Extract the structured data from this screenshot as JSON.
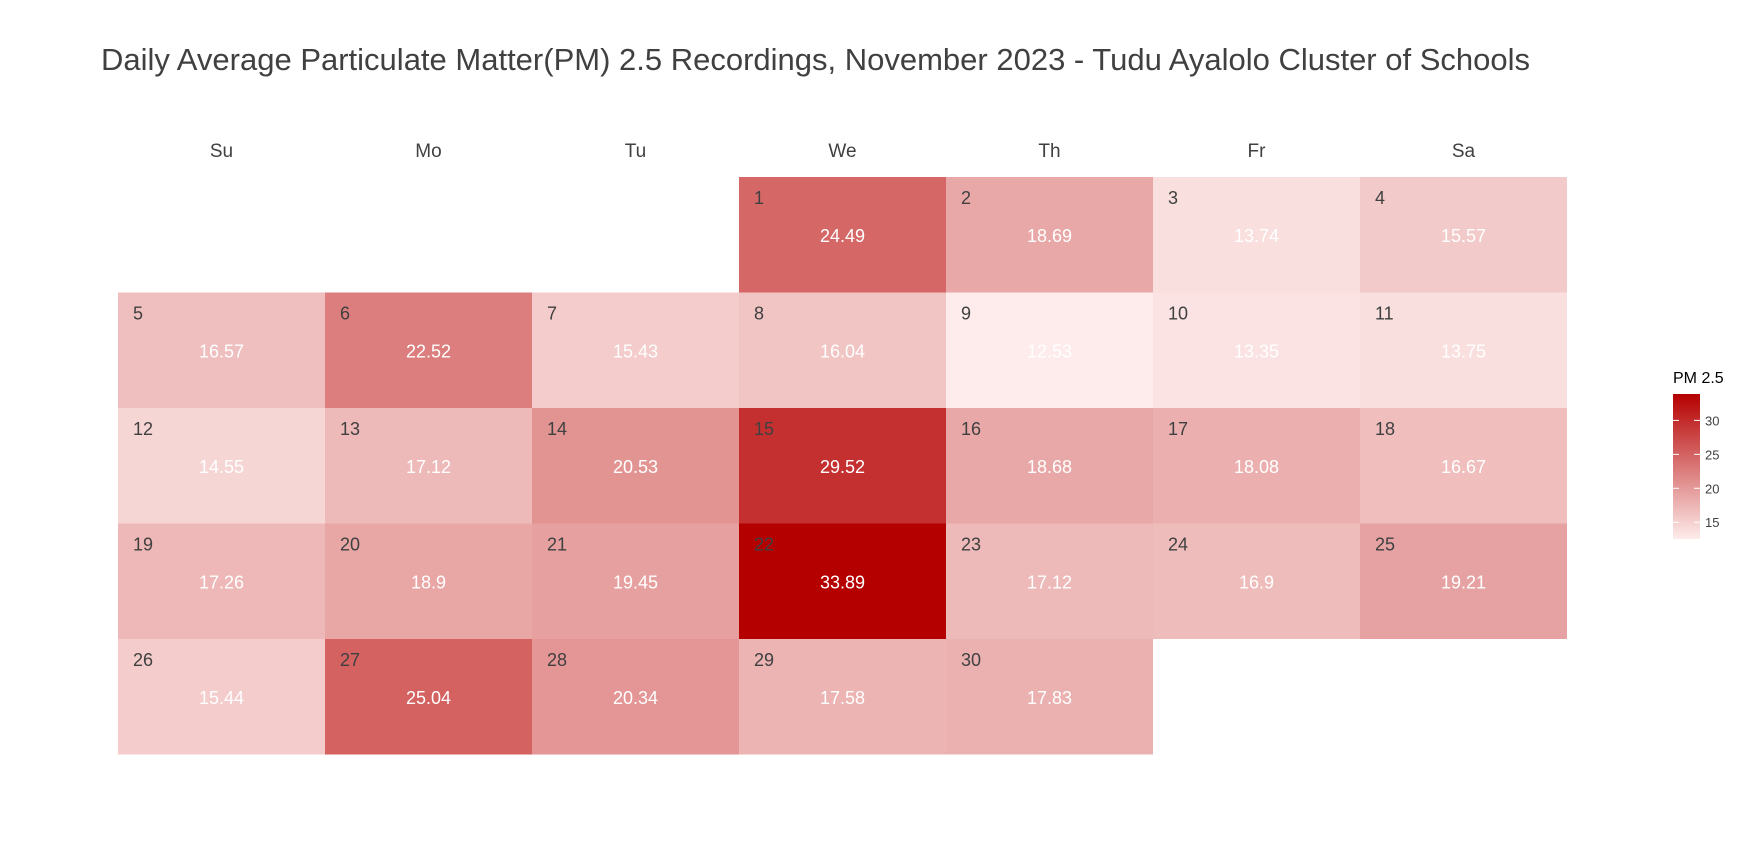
{
  "chart_data": {
    "type": "heatmap",
    "title": "Daily Average Particulate Matter(PM) 2.5 Recordings, November 2023 - Tudu Ayalolo Cluster of Schools",
    "weekdays": [
      "Su",
      "Mo",
      "Tu",
      "We",
      "Th",
      "Fr",
      "Sa"
    ],
    "first_weekday_index": 3,
    "days": [
      1,
      2,
      3,
      4,
      5,
      6,
      7,
      8,
      9,
      10,
      11,
      12,
      13,
      14,
      15,
      16,
      17,
      18,
      19,
      20,
      21,
      22,
      23,
      24,
      25,
      26,
      27,
      28,
      29,
      30
    ],
    "values": [
      24.49,
      18.69,
      13.74,
      15.57,
      16.57,
      22.52,
      15.43,
      16.04,
      12.53,
      13.35,
      13.75,
      14.55,
      17.12,
      20.53,
      29.52,
      18.68,
      18.08,
      16.67,
      17.26,
      18.9,
      19.45,
      33.89,
      17.12,
      16.9,
      19.21,
      15.44,
      25.04,
      20.34,
      17.58,
      17.83
    ],
    "value_labels": [
      "24.49",
      "18.69",
      "13.74",
      "15.57",
      "16.57",
      "22.52",
      "15.43",
      "16.04",
      "12.53",
      "13.35",
      "13.75",
      "14.55",
      "17.12",
      "20.53",
      "29.52",
      "18.68",
      "18.08",
      "16.67",
      "17.26",
      "18.9",
      "19.45",
      "33.89",
      "17.12",
      "16.9",
      "19.21",
      "15.44",
      "25.04",
      "20.34",
      "17.58",
      "17.83"
    ],
    "color_scale": {
      "low": "#fdeceb",
      "high": "#b50000",
      "range": [
        12.53,
        33.89
      ]
    },
    "legend": {
      "title": "PM 2.5",
      "ticks": [
        15,
        20,
        25,
        30
      ],
      "placement": "right"
    }
  }
}
